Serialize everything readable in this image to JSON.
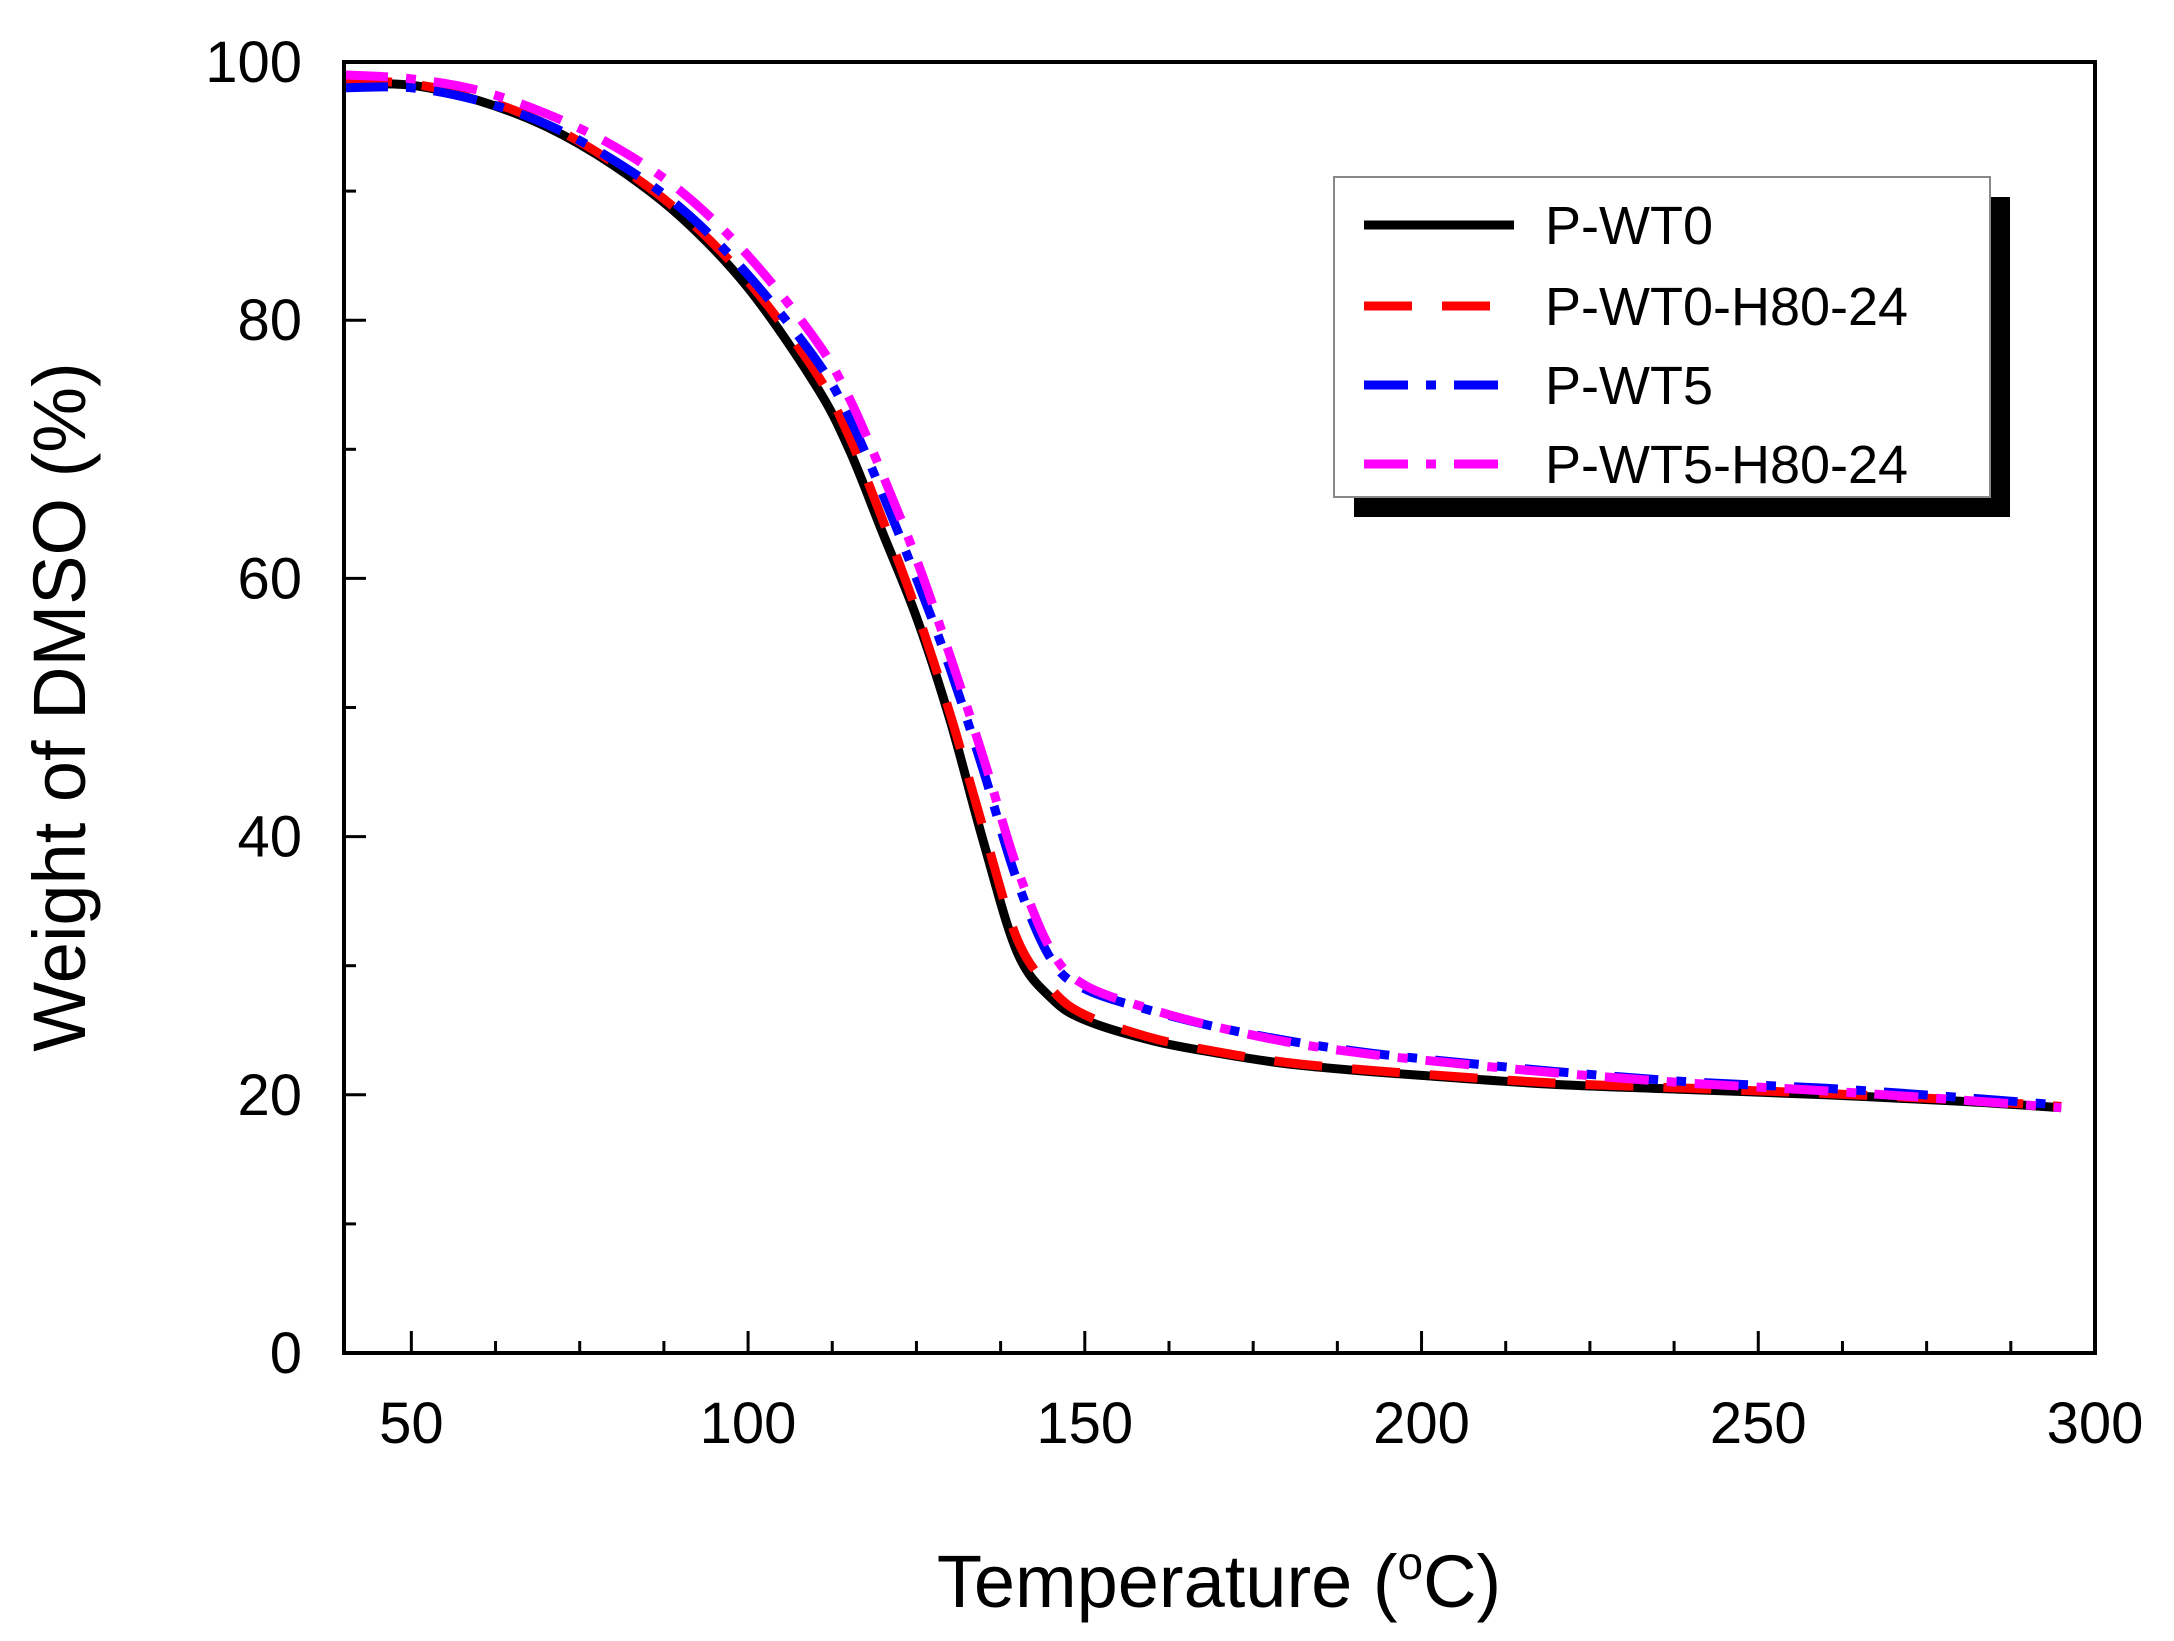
{
  "chart_data": {
    "type": "line",
    "title": "",
    "xlabel": "Temperature",
    "xlabel_unit": "(°C)",
    "xlabel_unit_open": "(",
    "xlabel_unit_degree": "o",
    "xlabel_unit_close": "C)",
    "ylabel": "Weight of DMSO (%)",
    "xlim": [
      40,
      300
    ],
    "ylim": [
      0,
      100
    ],
    "xticks": [
      50,
      100,
      150,
      200,
      250,
      300
    ],
    "yticks": [
      0,
      20,
      40,
      60,
      80,
      100
    ],
    "x_minor_step": 12.5,
    "y_minor_step": 10,
    "grid": false,
    "legend_position": "top-right",
    "series": [
      {
        "name": "P-WT0",
        "color": "#000000",
        "dash": "solid",
        "points": [
          [
            40,
            98.3
          ],
          [
            50,
            98.2
          ],
          [
            60,
            97
          ],
          [
            70,
            95
          ],
          [
            80,
            92
          ],
          [
            90,
            88
          ],
          [
            100,
            82.5
          ],
          [
            110,
            75
          ],
          [
            115,
            70
          ],
          [
            120,
            63.5
          ],
          [
            125,
            57
          ],
          [
            130,
            49
          ],
          [
            135,
            39.5
          ],
          [
            140,
            31
          ],
          [
            145,
            27.5
          ],
          [
            150,
            25.8
          ],
          [
            160,
            24.2
          ],
          [
            170,
            23.2
          ],
          [
            180,
            22.4
          ],
          [
            190,
            21.9
          ],
          [
            200,
            21.5
          ],
          [
            220,
            20.8
          ],
          [
            240,
            20.4
          ],
          [
            260,
            20
          ],
          [
            280,
            19.5
          ],
          [
            295,
            19
          ]
        ]
      },
      {
        "name": "P-WT0-H80-24",
        "color": "#ff0000",
        "dash": "dash",
        "points": [
          [
            40,
            98.6
          ],
          [
            50,
            98.3
          ],
          [
            60,
            97.2
          ],
          [
            70,
            95.2
          ],
          [
            80,
            92.2
          ],
          [
            90,
            88.3
          ],
          [
            100,
            83
          ],
          [
            110,
            76
          ],
          [
            115,
            71
          ],
          [
            120,
            64.5
          ],
          [
            125,
            57.5
          ],
          [
            130,
            49.5
          ],
          [
            135,
            40.5
          ],
          [
            140,
            32
          ],
          [
            145,
            28.2
          ],
          [
            150,
            26.2
          ],
          [
            160,
            24.4
          ],
          [
            170,
            23.3
          ],
          [
            180,
            22.5
          ],
          [
            190,
            22
          ],
          [
            200,
            21.6
          ],
          [
            220,
            20.9
          ],
          [
            240,
            20.5
          ],
          [
            260,
            20.1
          ],
          [
            280,
            19.6
          ],
          [
            295,
            19.1
          ]
        ]
      },
      {
        "name": "P-WT5",
        "color": "#0000ff",
        "dash": "dashdot",
        "points": [
          [
            40,
            98
          ],
          [
            50,
            98
          ],
          [
            60,
            97
          ],
          [
            70,
            95.2
          ],
          [
            80,
            92.4
          ],
          [
            90,
            88.7
          ],
          [
            100,
            83.5
          ],
          [
            110,
            77
          ],
          [
            115,
            72.5
          ],
          [
            120,
            66.5
          ],
          [
            125,
            60
          ],
          [
            130,
            53
          ],
          [
            135,
            45
          ],
          [
            140,
            36.5
          ],
          [
            145,
            30.5
          ],
          [
            150,
            28.2
          ],
          [
            160,
            26.5
          ],
          [
            170,
            25.2
          ],
          [
            180,
            24.2
          ],
          [
            190,
            23.4
          ],
          [
            200,
            22.8
          ],
          [
            220,
            21.8
          ],
          [
            240,
            21
          ],
          [
            260,
            20.5
          ],
          [
            280,
            19.8
          ],
          [
            295,
            19.2
          ]
        ]
      },
      {
        "name": "P-WT5-H80-24",
        "color": "#ff00ff",
        "dash": "dashdot",
        "points": [
          [
            40,
            99
          ],
          [
            50,
            98.7
          ],
          [
            60,
            97.8
          ],
          [
            70,
            96
          ],
          [
            80,
            93.5
          ],
          [
            90,
            90
          ],
          [
            100,
            85
          ],
          [
            110,
            78.5
          ],
          [
            115,
            74
          ],
          [
            120,
            68
          ],
          [
            125,
            61.5
          ],
          [
            130,
            54
          ],
          [
            135,
            46
          ],
          [
            140,
            37.5
          ],
          [
            145,
            31.2
          ],
          [
            150,
            28.5
          ],
          [
            160,
            26.6
          ],
          [
            170,
            25.2
          ],
          [
            180,
            24.1
          ],
          [
            190,
            23.3
          ],
          [
            200,
            22.7
          ],
          [
            220,
            21.7
          ],
          [
            240,
            20.9
          ],
          [
            260,
            20.3
          ],
          [
            280,
            19.6
          ],
          [
            295,
            19
          ]
        ]
      }
    ]
  }
}
